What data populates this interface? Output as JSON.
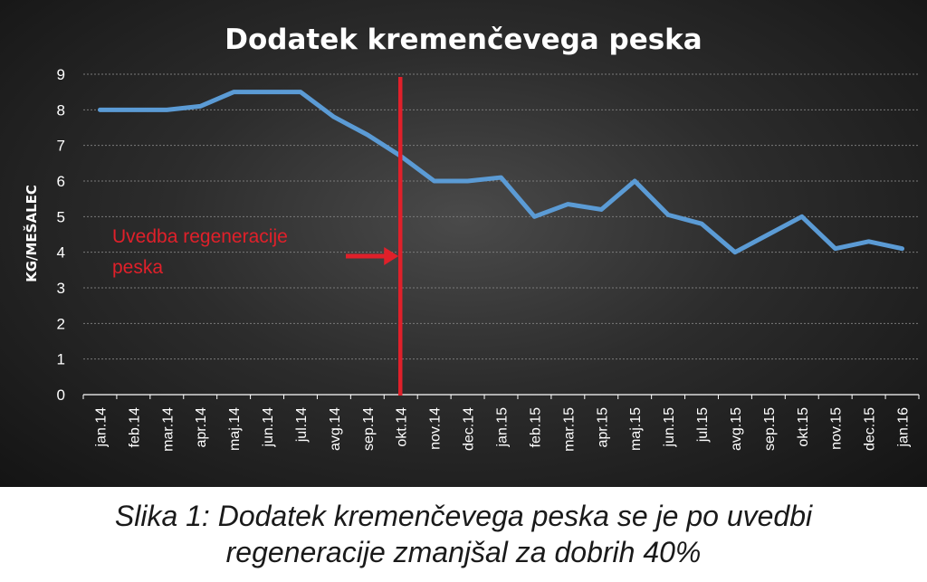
{
  "chart_data": {
    "type": "line",
    "title": "Dodatek kremenčevega peska",
    "ylabel": "KG/MEŠALEC",
    "xlabel": "",
    "ylim": [
      0,
      9
    ],
    "yticks": [
      0,
      1,
      2,
      3,
      4,
      5,
      6,
      7,
      8,
      9
    ],
    "grid": true,
    "categories": [
      "jan.14",
      "feb.14",
      "mar.14",
      "apr.14",
      "maj.14",
      "jun.14",
      "jul.14",
      "avg.14",
      "sep.14",
      "okt.14",
      "nov.14",
      "dec.14",
      "jan.15",
      "feb.15",
      "mar.15",
      "apr.15",
      "maj.15",
      "jun.15",
      "jul.15",
      "avg.15",
      "sep.15",
      "okt.15",
      "nov.15",
      "dec.15",
      "jan.16"
    ],
    "series": [
      {
        "values": [
          8.0,
          8.0,
          8.0,
          8.1,
          8.5,
          8.5,
          8.5,
          7.8,
          7.3,
          6.7,
          6.0,
          6.0,
          6.1,
          5.0,
          5.35,
          5.2,
          6.0,
          5.05,
          4.8,
          4.0,
          4.5,
          5.0,
          4.1,
          4.3,
          4.1
        ],
        "color": "#5b9bd5"
      }
    ],
    "annotation": {
      "text_lines": [
        "Uvedba regeneracije",
        "peska"
      ],
      "marker_category": "okt.14",
      "color": "#e0202a"
    }
  },
  "caption": {
    "line1": "Slika 1: Dodatek kremenčevega peska se je po uvedbi",
    "line2": "regeneracije zmanjšal za dobrih 40%"
  }
}
